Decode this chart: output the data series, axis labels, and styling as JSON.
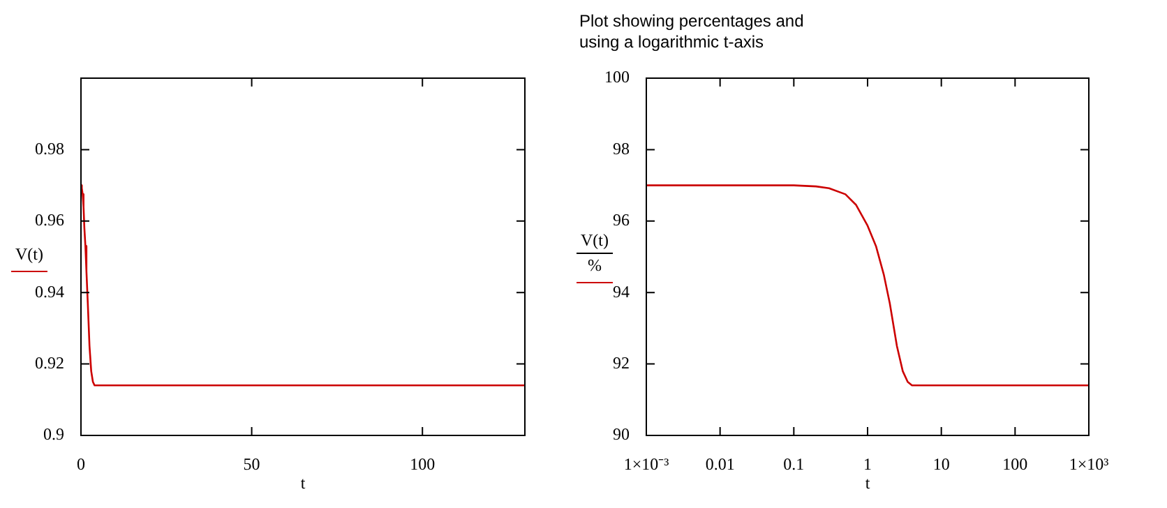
{
  "chart_data": [
    {
      "type": "line",
      "xlabel": "t",
      "ylabel": "V(t)",
      "marker": "none",
      "xlim": [
        0,
        130
      ],
      "ylim": [
        0.9,
        1.0
      ],
      "xticks": [
        0,
        50,
        100
      ],
      "yticks": [
        0.9,
        0.92,
        0.94,
        0.96,
        0.98
      ],
      "x": [
        0,
        0.25,
        0.5,
        0.75,
        1,
        1.3,
        1.6,
        2,
        2.5,
        3,
        3.5,
        4,
        5,
        130
      ],
      "series": [
        {
          "color": "#cc0000",
          "values": [
            0.97,
            0.9692,
            0.9675,
            0.964,
            0.958,
            0.953,
            0.946,
            0.937,
            0.925,
            0.918,
            0.915,
            0.914,
            0.914,
            0.914
          ]
        }
      ]
    },
    {
      "type": "line",
      "title": "Plot showing percentages and\nusing a logarithmic t-axis",
      "xlabel": "t",
      "ylabel": "V(t)\n%",
      "marker": "none",
      "log": "x",
      "xlim": [
        0.001,
        1000
      ],
      "ylim": [
        90,
        100
      ],
      "xticks": [
        {
          "value": 0.001,
          "label": "1×10⁻³"
        },
        0.01,
        0.1,
        1,
        10,
        100,
        {
          "value": 1000,
          "label": "1×10³"
        }
      ],
      "yticks": [
        90,
        92,
        94,
        96,
        98,
        100
      ],
      "x": [
        0.001,
        0.01,
        0.1,
        0.2,
        0.3,
        0.5,
        0.7,
        1,
        1.3,
        1.66,
        2,
        2.5,
        3,
        3.5,
        4,
        5,
        10,
        100,
        1000
      ],
      "series": [
        {
          "color": "#cc0000",
          "values": [
            97,
            97,
            97,
            96.97,
            96.92,
            96.75,
            96.45,
            95.87,
            95.3,
            94.5,
            93.7,
            92.5,
            91.8,
            91.5,
            91.4,
            91.4,
            91.4,
            91.4,
            91.4
          ]
        }
      ]
    }
  ]
}
